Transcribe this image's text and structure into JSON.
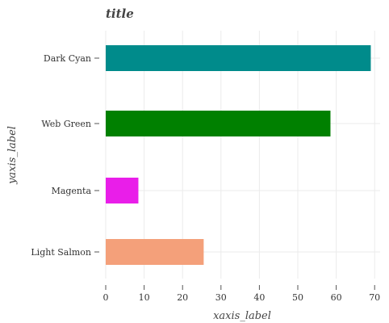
{
  "chart_data": {
    "type": "bar",
    "orientation": "horizontal",
    "title": "title",
    "xlabel": "xaxis_label",
    "ylabel": "yaxis_label",
    "categories": [
      "Light Salmon",
      "Magenta",
      "Web Green",
      "Dark Cyan"
    ],
    "values": [
      25.5,
      8.5,
      58.5,
      69
    ],
    "colors": [
      "#f4a07a",
      "#e91ee9",
      "#008000",
      "#008b8b"
    ],
    "xlim": [
      0,
      70
    ],
    "xticks": [
      0,
      10,
      20,
      30,
      40,
      50,
      60,
      70
    ],
    "grid": true,
    "legend": "none"
  }
}
